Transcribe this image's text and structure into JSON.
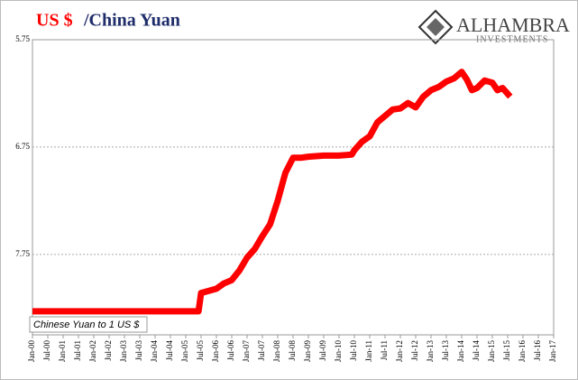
{
  "chart_data": {
    "type": "line",
    "title_prefix": "US $",
    "title": "/China Yuan",
    "logo": {
      "name": "ALHAMBRA",
      "sub": "INVESTMENTS"
    },
    "annotation": "Chinese Yuan to 1 US $",
    "y_inverted": true,
    "ylim": [
      5.75,
      8.5
    ],
    "yticks": [
      5.75,
      6.75,
      7.75
    ],
    "grid": true,
    "xlim": [
      "Jan-00",
      "Jan-17"
    ],
    "xticks": [
      "Jan-00",
      "Jul-00",
      "Jan-01",
      "Jul-01",
      "Jan-02",
      "Jul-02",
      "Jan-03",
      "Jul-03",
      "Jan-04",
      "Jul-04",
      "Jan-05",
      "Jul-05",
      "Jan-06",
      "Jul-06",
      "Jan-07",
      "Jul-07",
      "Jan-08",
      "Jul-08",
      "Jan-09",
      "Jul-09",
      "Jan-10",
      "Jul-10",
      "Jan-11",
      "Jul-11",
      "Jan-12",
      "Jul-12",
      "Jan-13",
      "Jul-13",
      "Jan-14",
      "Jul-14",
      "Jan-15",
      "Jul-15",
      "Jan-16",
      "Jul-16",
      "Jan-17"
    ],
    "series": [
      {
        "color": "#ff0000",
        "x": [
          "Jan-00",
          "Jan-01",
          "Jan-02",
          "Jan-03",
          "Jan-04",
          "Jan-05",
          "Jun-05",
          "Jul-05",
          "Oct-05",
          "Jan-06",
          "Apr-06",
          "Jul-06",
          "Oct-06",
          "Jan-07",
          "Apr-07",
          "Jul-07",
          "Oct-07",
          "Jan-08",
          "Apr-08",
          "Jul-08",
          "Oct-08",
          "Jan-09",
          "Jul-09",
          "Jan-10",
          "Jun-10",
          "Jul-10",
          "Oct-10",
          "Jan-11",
          "Apr-11",
          "Jul-11",
          "Oct-11",
          "Jan-12",
          "Apr-12",
          "Jul-12",
          "Oct-12",
          "Jan-13",
          "Apr-13",
          "Jul-13",
          "Oct-13",
          "Jan-14",
          "Mar-14",
          "May-14",
          "Jul-14",
          "Oct-14",
          "Jan-15",
          "Mar-15",
          "May-15",
          "Aug-15"
        ],
        "values": [
          8.28,
          8.28,
          8.28,
          8.28,
          8.28,
          8.28,
          8.28,
          8.11,
          8.09,
          8.07,
          8.02,
          7.99,
          7.9,
          7.78,
          7.7,
          7.58,
          7.47,
          7.25,
          6.99,
          6.85,
          6.85,
          6.84,
          6.83,
          6.83,
          6.82,
          6.78,
          6.7,
          6.65,
          6.52,
          6.46,
          6.4,
          6.39,
          6.34,
          6.38,
          6.28,
          6.22,
          6.19,
          6.14,
          6.11,
          6.05,
          6.12,
          6.22,
          6.2,
          6.13,
          6.15,
          6.22,
          6.2,
          6.28
        ]
      }
    ]
  }
}
